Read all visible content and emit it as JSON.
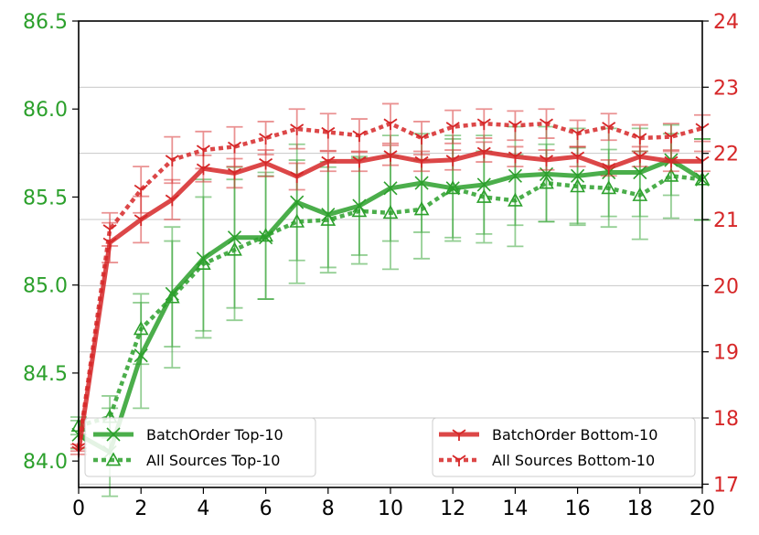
{
  "chart_data": {
    "type": "line",
    "title": "",
    "xlabel": "",
    "ylabel_left": "",
    "ylabel_right": "",
    "xlim": [
      0,
      20
    ],
    "ylim_left": [
      83.85,
      86.5
    ],
    "ylim_right": [
      16.95,
      24
    ],
    "x_ticks": [
      "0",
      "2",
      "4",
      "6",
      "8",
      "10",
      "12",
      "14",
      "16",
      "18",
      "20"
    ],
    "y_left_ticks": [
      "84.0",
      "84.5",
      "85.0",
      "85.5",
      "86.0",
      "86.5"
    ],
    "y_right_ticks": [
      "17",
      "18",
      "19",
      "20",
      "21",
      "22",
      "23",
      "24"
    ],
    "grid": "horizontal",
    "colors": {
      "green": "#2ca02c",
      "red": "#d62728"
    },
    "x": [
      0,
      1,
      2,
      3,
      4,
      5,
      6,
      7,
      8,
      9,
      10,
      11,
      12,
      13,
      14,
      15,
      16,
      17,
      18,
      19,
      20
    ],
    "series": [
      {
        "name": "BatchOrder Top-10",
        "axis": "left",
        "style": "solid",
        "marker": "x",
        "color": "#2ca02c",
        "values": [
          84.15,
          84.05,
          84.6,
          84.95,
          85.15,
          85.27,
          85.27,
          85.47,
          85.4,
          85.45,
          85.55,
          85.58,
          85.55,
          85.57,
          85.62,
          85.63,
          85.62,
          85.64,
          85.64,
          85.71,
          85.6
        ],
        "errors": [
          0.08,
          0.25,
          0.3,
          0.3,
          0.45,
          0.4,
          0.35,
          0.33,
          0.3,
          0.28,
          0.3,
          0.28,
          0.3,
          0.28,
          0.28,
          0.27,
          0.27,
          0.25,
          0.25,
          0.2,
          0.23
        ]
      },
      {
        "name": "All Sources Top-10",
        "axis": "left",
        "style": "dotted",
        "marker": "triangle",
        "color": "#2ca02c",
        "values": [
          84.2,
          84.25,
          84.75,
          84.93,
          85.12,
          85.2,
          85.28,
          85.36,
          85.37,
          85.42,
          85.41,
          85.43,
          85.55,
          85.5,
          85.48,
          85.58,
          85.56,
          85.55,
          85.51,
          85.62,
          85.6
        ],
        "errors": [
          0.05,
          0.12,
          0.2,
          0.4,
          0.38,
          0.4,
          0.36,
          0.35,
          0.3,
          0.3,
          0.32,
          0.28,
          0.28,
          0.26,
          0.26,
          0.22,
          0.22,
          0.22,
          0.25,
          0.24,
          0.23
        ]
      },
      {
        "name": "BatchOrder Bottom-10",
        "axis": "right",
        "style": "solid",
        "marker": "tri_down",
        "color": "#d62728",
        "values": [
          17.5,
          20.65,
          21.0,
          21.3,
          21.77,
          21.7,
          21.85,
          21.65,
          21.88,
          21.88,
          21.97,
          21.88,
          21.9,
          22.02,
          21.95,
          21.9,
          21.95,
          21.78,
          21.95,
          21.88,
          21.88
        ],
        "errors": [
          0.05,
          0.3,
          0.35,
          0.3,
          0.2,
          0.22,
          0.2,
          0.2,
          0.15,
          0.15,
          0.15,
          0.15,
          0.15,
          0.15,
          0.15,
          0.15,
          0.15,
          0.12,
          0.15,
          0.15,
          0.15
        ]
      },
      {
        "name": "All Sources Bottom-10",
        "axis": "right",
        "style": "dotted",
        "marker": "tri_down",
        "color": "#d62728",
        "values": [
          17.55,
          20.85,
          21.45,
          21.9,
          22.05,
          22.1,
          22.23,
          22.37,
          22.32,
          22.27,
          22.45,
          22.23,
          22.4,
          22.45,
          22.42,
          22.45,
          22.3,
          22.4,
          22.23,
          22.25,
          22.38
        ],
        "errors": [
          0.05,
          0.25,
          0.35,
          0.35,
          0.28,
          0.3,
          0.25,
          0.3,
          0.28,
          0.25,
          0.3,
          0.25,
          0.25,
          0.22,
          0.22,
          0.22,
          0.2,
          0.2,
          0.2,
          0.2,
          0.2
        ]
      }
    ],
    "legends": [
      {
        "placement": "lower-left",
        "entries": [
          "BatchOrder Top-10",
          "All Sources Top-10"
        ]
      },
      {
        "placement": "lower-right",
        "entries": [
          "BatchOrder Bottom-10",
          "All Sources Bottom-10"
        ]
      }
    ]
  }
}
